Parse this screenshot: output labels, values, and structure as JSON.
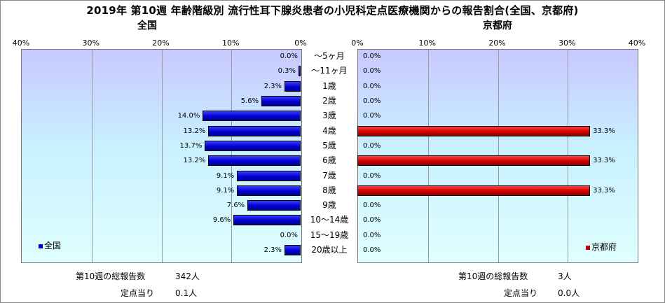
{
  "title": "2019年 第10週 年齢階級別 流行性耳下腺炎患者の小児科定点医療機関からの報告割合(全国、京都府)",
  "chart_data": [
    {
      "type": "bar",
      "orientation": "horizontal",
      "direction": "leftward",
      "title": "全国",
      "categories": [
        "～5ヶ月",
        "～11ヶ月",
        "1歳",
        "2歳",
        "3歳",
        "4歳",
        "5歳",
        "6歳",
        "7歳",
        "8歳",
        "9歳",
        "10～14歳",
        "15～19歳",
        "20歳以上"
      ],
      "values": [
        0.0,
        0.3,
        2.3,
        5.6,
        14.0,
        13.2,
        13.7,
        13.2,
        9.1,
        9.1,
        7.6,
        9.6,
        0.0,
        2.3
      ],
      "value_labels": [
        "0.0%",
        "0.3%",
        "2.3%",
        "5.6%",
        "14.0%",
        "13.2%",
        "13.7%",
        "13.2%",
        "9.1%",
        "9.1%",
        "7.6%",
        "9.6%",
        "0.0%",
        "2.3%"
      ],
      "xlim": [
        0,
        40
      ],
      "ticks": [
        "40%",
        "30%",
        "20%",
        "10%",
        "0%"
      ],
      "grid": true,
      "series": [
        {
          "name": "全国",
          "color": "#0000cc"
        }
      ],
      "legend": "bottom-left"
    },
    {
      "type": "bar",
      "orientation": "horizontal",
      "direction": "rightward",
      "title": "京都府",
      "categories": [
        "～5ヶ月",
        "～11ヶ月",
        "1歳",
        "2歳",
        "3歳",
        "4歳",
        "5歳",
        "6歳",
        "7歳",
        "8歳",
        "9歳",
        "10～14歳",
        "15～19歳",
        "20歳以上"
      ],
      "values": [
        0.0,
        0.0,
        0.0,
        0.0,
        0.0,
        33.3,
        0.0,
        33.3,
        0.0,
        33.3,
        0.0,
        0.0,
        0.0,
        0.0
      ],
      "value_labels": [
        "0.0%",
        "0.0%",
        "0.0%",
        "0.0%",
        "0.0%",
        "33.3%",
        "0.0%",
        "33.3%",
        "0.0%",
        "33.3%",
        "0.0%",
        "0.0%",
        "0.0%",
        "0.0%"
      ],
      "xlim": [
        0,
        40
      ],
      "ticks": [
        "0%",
        "10%",
        "20%",
        "30%",
        "40%"
      ],
      "grid": true,
      "series": [
        {
          "name": "京都府",
          "color": "#cc0000"
        }
      ],
      "legend": "bottom-right"
    }
  ],
  "footer": {
    "national_total_label": "第10週の総報告数",
    "national_total_value": "342人",
    "national_per_label": "定点当り",
    "national_per_value": "0.1人",
    "kyoto_total_label": "第10週の総報告数",
    "kyoto_total_value": "3人",
    "kyoto_per_label": "定点当り",
    "kyoto_per_value": "0.0人"
  }
}
